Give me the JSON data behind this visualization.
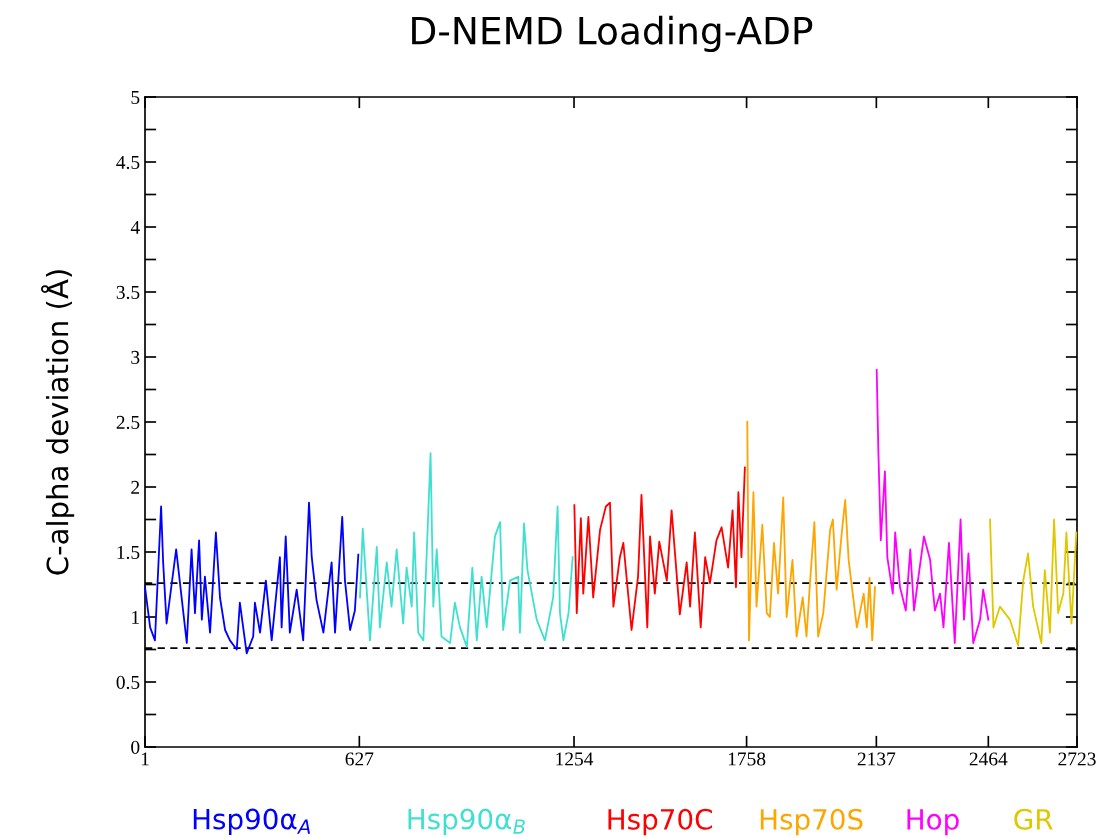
{
  "chart_data": {
    "type": "line",
    "title": "D-NEMD Loading-ADP",
    "ylabel": "C-alpha deviation (Å)",
    "xlim": [
      1,
      2723
    ],
    "xticks": [
      1,
      627,
      1254,
      1758,
      2137,
      2464,
      2723
    ],
    "ylim": [
      0,
      5
    ],
    "yticks": [
      0,
      {
        "value": 0.25,
        "label": null
      },
      0.5,
      {
        "value": 0.75,
        "label": null
      },
      1,
      {
        "value": 1.25,
        "label": null
      },
      1.5,
      {
        "value": 1.75,
        "label": null
      },
      2,
      {
        "value": 2.25,
        "label": null
      },
      2.5,
      {
        "value": 2.75,
        "label": null
      },
      3,
      {
        "value": 3.25,
        "label": null
      },
      3.5,
      {
        "value": 3.75,
        "label": null
      },
      4,
      {
        "value": 4.25,
        "label": null
      },
      4.5,
      {
        "value": 4.75,
        "label": null
      },
      5
    ],
    "grid": false,
    "legend": false,
    "marker": "none",
    "line_style": "solid",
    "ref_lines": [
      {
        "axis": "y",
        "value": 1.26,
        "label": null,
        "color": "#000000",
        "line_style": "dashed"
      },
      {
        "axis": "y",
        "value": 0.76,
        "label": null,
        "color": "#000000",
        "line_style": "dashed"
      }
    ],
    "series": [
      {
        "name": "Hsp90α$_{A}$",
        "color": "#0000ff",
        "x": [
          1,
          16,
          30,
          48,
          54,
          64,
          92,
          123,
          137,
          147,
          159,
          167,
          176,
          191,
          208,
          220,
          235,
          249,
          269,
          278,
          298,
          317,
          322,
          337,
          354,
          371,
          395,
          400,
          412,
          424,
          444,
          463,
          480,
          488,
          502,
          522,
          546,
          556,
          577,
          585,
          600,
          614,
          624
        ],
        "values": [
          1.23,
          0.92,
          0.82,
          1.85,
          1.42,
          0.95,
          1.52,
          0.8,
          1.52,
          1.03,
          1.59,
          0.98,
          1.31,
          0.88,
          1.65,
          1.15,
          0.9,
          0.82,
          0.75,
          1.11,
          0.72,
          0.85,
          1.11,
          0.88,
          1.28,
          0.82,
          1.46,
          0.92,
          1.62,
          0.88,
          1.21,
          0.82,
          1.88,
          1.46,
          1.13,
          0.88,
          1.42,
          0.88,
          1.77,
          1.28,
          0.9,
          1.05,
          1.48
        ]
      },
      {
        "name": "Hsp90α$_{B}$",
        "color": "#40e0d0",
        "x": [
          629,
          637,
          658,
          678,
          687,
          707,
          721,
          736,
          755,
          765,
          780,
          787,
          799,
          814,
          835,
          843,
          853,
          867,
          892,
          906,
          921,
          941,
          957,
          970,
          984,
          999,
          1023,
          1038,
          1047,
          1067,
          1091,
          1096,
          1108,
          1118,
          1145,
          1169,
          1193,
          1206,
          1213,
          1223,
          1238,
          1250
        ],
        "values": [
          1.15,
          1.68,
          0.82,
          1.54,
          0.92,
          1.42,
          1.08,
          1.52,
          0.95,
          1.38,
          1.08,
          1.65,
          0.88,
          0.82,
          2.26,
          1.08,
          1.52,
          0.85,
          0.8,
          1.11,
          0.92,
          0.77,
          1.38,
          0.82,
          1.31,
          0.92,
          1.62,
          1.73,
          0.9,
          1.28,
          1.31,
          0.88,
          1.72,
          1.36,
          0.98,
          0.82,
          1.15,
          1.85,
          1.03,
          0.82,
          1.03,
          1.46
        ]
      },
      {
        "name": "Hsp70C",
        "color": "#ff0000",
        "x": [
          1255,
          1262,
          1274,
          1281,
          1296,
          1310,
          1330,
          1347,
          1359,
          1369,
          1388,
          1398,
          1422,
          1441,
          1451,
          1468,
          1476,
          1490,
          1503,
          1525,
          1539,
          1563,
          1583,
          1593,
          1607,
          1624,
          1637,
          1651,
          1670,
          1685,
          1704,
          1717,
          1727,
          1734,
          1743,
          1753
        ],
        "values": [
          1.86,
          1.03,
          1.76,
          1.18,
          1.77,
          1.15,
          1.67,
          1.85,
          1.88,
          1.08,
          1.46,
          1.57,
          0.9,
          1.31,
          1.94,
          0.92,
          1.62,
          1.18,
          1.58,
          1.28,
          1.82,
          1.02,
          1.42,
          1.08,
          1.65,
          0.92,
          1.46,
          1.26,
          1.59,
          1.69,
          1.38,
          1.82,
          1.23,
          1.96,
          1.46,
          2.15
        ]
      },
      {
        "name": "Hsp70S",
        "color": "#ffa500",
        "x": [
          1760,
          1765,
          1778,
          1787,
          1804,
          1817,
          1826,
          1838,
          1850,
          1865,
          1875,
          1892,
          1904,
          1922,
          1933,
          1943,
          1956,
          1967,
          1982,
          2002,
          2010,
          2021,
          2036,
          2046,
          2056,
          2080,
          2100,
          2109,
          2117,
          2125,
          2133
        ],
        "values": [
          2.5,
          0.82,
          1.96,
          1.08,
          1.71,
          1.03,
          1.0,
          1.57,
          1.18,
          1.92,
          1.0,
          1.44,
          0.85,
          1.15,
          0.85,
          1.26,
          1.73,
          0.85,
          1.03,
          1.67,
          1.75,
          1.21,
          1.65,
          1.9,
          1.44,
          0.92,
          1.18,
          0.92,
          1.3,
          0.82,
          1.23
        ]
      },
      {
        "name": "Hop",
        "color": "#ff00ff",
        "x": [
          2138,
          2143,
          2150,
          2162,
          2169,
          2185,
          2192,
          2206,
          2223,
          2236,
          2247,
          2260,
          2276,
          2294,
          2308,
          2323,
          2333,
          2349,
          2366,
          2383,
          2393,
          2406,
          2420,
          2440,
          2449,
          2464
        ],
        "values": [
          2.9,
          2.26,
          1.59,
          2.12,
          1.46,
          1.18,
          1.65,
          1.23,
          1.05,
          1.52,
          1.05,
          1.31,
          1.62,
          1.44,
          1.05,
          1.18,
          0.92,
          1.57,
          0.8,
          1.75,
          0.98,
          1.49,
          0.8,
          0.98,
          1.21,
          0.98
        ]
      },
      {
        "name": "GR",
        "color": "#e0c800",
        "x": [
          2469,
          2479,
          2498,
          2527,
          2551,
          2566,
          2580,
          2595,
          2619,
          2629,
          2644,
          2656,
          2668,
          2683,
          2692,
          2707,
          2721
        ],
        "values": [
          1.75,
          0.92,
          1.08,
          0.98,
          0.78,
          1.28,
          1.49,
          1.08,
          0.8,
          1.36,
          0.88,
          1.75,
          1.03,
          1.18,
          1.65,
          0.95,
          1.65
        ]
      }
    ]
  }
}
